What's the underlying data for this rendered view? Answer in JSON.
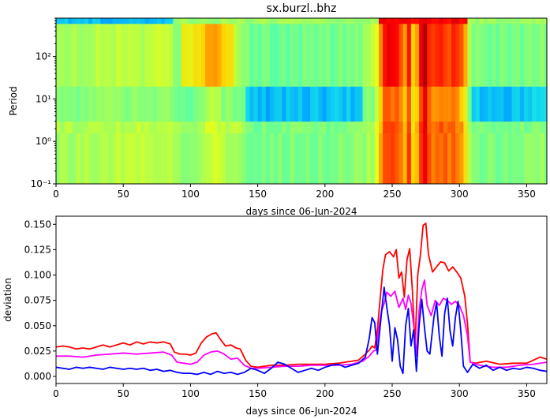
{
  "chart_data": [
    {
      "type": "heatmap",
      "title": "sx.burzl..bhz",
      "xlabel": "days since 06-Jun-2024",
      "ylabel": "Period",
      "xlim": [
        0,
        365
      ],
      "xticks": [
        "0",
        "50",
        "100",
        "150",
        "200",
        "250",
        "300",
        "350"
      ],
      "ylim": [
        0.1,
        800
      ],
      "yscale": "log",
      "yticks": [
        {
          "label": "10⁻¹",
          "value": 0.1
        },
        {
          "label": "10⁰",
          "value": 1
        },
        {
          "label": "10¹",
          "value": 10
        },
        {
          "label": "10²",
          "value": 100
        }
      ],
      "colormap": [
        "#00007f",
        "#0000ff",
        "#00a0ff",
        "#20ffe0",
        "#7fff7f",
        "#e0ff20",
        "#ffd000",
        "#ff6000",
        "#ff0000",
        "#b00000"
      ],
      "bands": [
        {
          "range": [
            0.1,
            1.6
          ],
          "period_weight": [
            0.06,
            0.12
          ]
        },
        {
          "range": [
            1.6,
            3
          ],
          "period_weight": [
            0.12,
            0.2
          ]
        },
        {
          "range": [
            3,
            20
          ],
          "period_weight": [
            0.2,
            0.15
          ]
        },
        {
          "range": [
            20,
            600
          ],
          "period_weight": [
            0.12,
            0.15
          ]
        },
        {
          "range": [
            600,
            800
          ],
          "period_weight": [
            0.05,
            0.05
          ]
        }
      ]
    },
    {
      "type": "line",
      "xlabel": "days since 06-Jun-2024",
      "ylabel": "deviation",
      "xlim": [
        0,
        365
      ],
      "ylim": [
        -0.007,
        0.158
      ],
      "xticks": [
        "0",
        "50",
        "100",
        "150",
        "200",
        "250",
        "300",
        "350"
      ],
      "yticks": [
        "0.000",
        "0.025",
        "0.050",
        "0.075",
        "0.100",
        "0.125",
        "0.150"
      ],
      "series": [
        {
          "color": "#ff0000",
          "points": [
            [
              0,
              0.029
            ],
            [
              5,
              0.03
            ],
            [
              10,
              0.029
            ],
            [
              15,
              0.027
            ],
            [
              20,
              0.028
            ],
            [
              25,
              0.027
            ],
            [
              30,
              0.029
            ],
            [
              35,
              0.031
            ],
            [
              40,
              0.029
            ],
            [
              45,
              0.031
            ],
            [
              50,
              0.033
            ],
            [
              55,
              0.031
            ],
            [
              60,
              0.034
            ],
            [
              65,
              0.032
            ],
            [
              70,
              0.034
            ],
            [
              75,
              0.033
            ],
            [
              80,
              0.034
            ],
            [
              85,
              0.032
            ],
            [
              88,
              0.024
            ],
            [
              92,
              0.022
            ],
            [
              96,
              0.022
            ],
            [
              100,
              0.021
            ],
            [
              104,
              0.023
            ],
            [
              108,
              0.033
            ],
            [
              112,
              0.039
            ],
            [
              116,
              0.042
            ],
            [
              119,
              0.043
            ],
            [
              122,
              0.037
            ],
            [
              126,
              0.03
            ],
            [
              130,
              0.031
            ],
            [
              134,
              0.028
            ],
            [
              137,
              0.027
            ],
            [
              141,
              0.016
            ],
            [
              145,
              0.01
            ],
            [
              150,
              0.009
            ],
            [
              160,
              0.011
            ],
            [
              170,
              0.011
            ],
            [
              180,
              0.012
            ],
            [
              190,
              0.012
            ],
            [
              200,
              0.012
            ],
            [
              210,
              0.013
            ],
            [
              215,
              0.014
            ],
            [
              220,
              0.015
            ],
            [
              225,
              0.016
            ],
            [
              230,
              0.022
            ],
            [
              233,
              0.026
            ],
            [
              235,
              0.03
            ],
            [
              237,
              0.028
            ],
            [
              239,
              0.046
            ],
            [
              241,
              0.076
            ],
            [
              243,
              0.105
            ],
            [
              245,
              0.12
            ],
            [
              248,
              0.123
            ],
            [
              251,
              0.118
            ],
            [
              253,
              0.125
            ],
            [
              255,
              0.097
            ],
            [
              257,
              0.103
            ],
            [
              259,
              0.078
            ],
            [
              261,
              0.115
            ],
            [
              263,
              0.126
            ],
            [
              265,
              0.085
            ],
            [
              267,
              0.03
            ],
            [
              269,
              0.1
            ],
            [
              271,
              0.12
            ],
            [
              273,
              0.149
            ],
            [
              275,
              0.151
            ],
            [
              277,
              0.12
            ],
            [
              280,
              0.103
            ],
            [
              283,
              0.108
            ],
            [
              286,
              0.113
            ],
            [
              289,
              0.112
            ],
            [
              292,
              0.104
            ],
            [
              295,
              0.108
            ],
            [
              298,
              0.103
            ],
            [
              301,
              0.097
            ],
            [
              304,
              0.079
            ],
            [
              306,
              0.052
            ],
            [
              308,
              0.014
            ],
            [
              312,
              0.013
            ],
            [
              320,
              0.015
            ],
            [
              330,
              0.012
            ],
            [
              340,
              0.013
            ],
            [
              350,
              0.013
            ],
            [
              355,
              0.016
            ],
            [
              360,
              0.019
            ],
            [
              365,
              0.017
            ]
          ]
        },
        {
          "color": "#ff00ff",
          "points": [
            [
              0,
              0.02
            ],
            [
              10,
              0.02
            ],
            [
              20,
              0.019
            ],
            [
              30,
              0.021
            ],
            [
              40,
              0.022
            ],
            [
              50,
              0.023
            ],
            [
              60,
              0.022
            ],
            [
              70,
              0.023
            ],
            [
              80,
              0.024
            ],
            [
              86,
              0.021
            ],
            [
              90,
              0.014
            ],
            [
              95,
              0.013
            ],
            [
              100,
              0.012
            ],
            [
              105,
              0.014
            ],
            [
              110,
              0.021
            ],
            [
              115,
              0.024
            ],
            [
              120,
              0.025
            ],
            [
              125,
              0.022
            ],
            [
              130,
              0.017
            ],
            [
              135,
              0.018
            ],
            [
              140,
              0.011
            ],
            [
              145,
              0.008
            ],
            [
              150,
              0.008
            ],
            [
              160,
              0.009
            ],
            [
              170,
              0.01
            ],
            [
              180,
              0.01
            ],
            [
              190,
              0.011
            ],
            [
              200,
              0.011
            ],
            [
              210,
              0.011
            ],
            [
              220,
              0.012
            ],
            [
              228,
              0.015
            ],
            [
              233,
              0.02
            ],
            [
              236,
              0.025
            ],
            [
              238,
              0.026
            ],
            [
              240,
              0.047
            ],
            [
              242,
              0.064
            ],
            [
              244,
              0.072
            ],
            [
              246,
              0.083
            ],
            [
              249,
              0.079
            ],
            [
              252,
              0.084
            ],
            [
              255,
              0.068
            ],
            [
              258,
              0.077
            ],
            [
              260,
              0.066
            ],
            [
              262,
              0.08
            ],
            [
              264,
              0.072
            ],
            [
              266,
              0.05
            ],
            [
              268,
              0.02
            ],
            [
              270,
              0.065
            ],
            [
              272,
              0.085
            ],
            [
              274,
              0.095
            ],
            [
              276,
              0.07
            ],
            [
              279,
              0.06
            ],
            [
              282,
              0.075
            ],
            [
              285,
              0.07
            ],
            [
              288,
              0.077
            ],
            [
              291,
              0.075
            ],
            [
              294,
              0.071
            ],
            [
              297,
              0.074
            ],
            [
              300,
              0.07
            ],
            [
              303,
              0.06
            ],
            [
              306,
              0.04
            ],
            [
              308,
              0.014
            ],
            [
              315,
              0.011
            ],
            [
              325,
              0.009
            ],
            [
              335,
              0.009
            ],
            [
              345,
              0.011
            ],
            [
              355,
              0.012
            ],
            [
              365,
              0.014
            ]
          ]
        },
        {
          "color": "#0000ff",
          "points": [
            [
              0,
              0.009
            ],
            [
              5,
              0.008
            ],
            [
              10,
              0.007
            ],
            [
              15,
              0.009
            ],
            [
              20,
              0.008
            ],
            [
              25,
              0.009
            ],
            [
              30,
              0.008
            ],
            [
              35,
              0.007
            ],
            [
              40,
              0.009
            ],
            [
              45,
              0.008
            ],
            [
              50,
              0.007
            ],
            [
              55,
              0.008
            ],
            [
              60,
              0.007
            ],
            [
              65,
              0.008
            ],
            [
              70,
              0.006
            ],
            [
              75,
              0.007
            ],
            [
              80,
              0.005
            ],
            [
              85,
              0.006
            ],
            [
              90,
              0.004
            ],
            [
              95,
              0.003
            ],
            [
              100,
              0.003
            ],
            [
              105,
              0.002
            ],
            [
              110,
              0.004
            ],
            [
              115,
              0.002
            ],
            [
              120,
              0.005
            ],
            [
              125,
              0.003
            ],
            [
              130,
              0.004
            ],
            [
              135,
              0.002
            ],
            [
              140,
              0.004
            ],
            [
              145,
              0.008
            ],
            [
              150,
              0.006
            ],
            [
              155,
              0.003
            ],
            [
              160,
              0.008
            ],
            [
              165,
              0.014
            ],
            [
              170,
              0.012
            ],
            [
              175,
              0.008
            ],
            [
              180,
              0.004
            ],
            [
              185,
              0.006
            ],
            [
              190,
              0.008
            ],
            [
              195,
              0.006
            ],
            [
              200,
              0.009
            ],
            [
              205,
              0.011
            ],
            [
              210,
              0.012
            ],
            [
              215,
              0.009
            ],
            [
              220,
              0.011
            ],
            [
              225,
              0.013
            ],
            [
              230,
              0.019
            ],
            [
              233,
              0.038
            ],
            [
              235,
              0.058
            ],
            [
              237,
              0.053
            ],
            [
              239,
              0.022
            ],
            [
              242,
              0.062
            ],
            [
              244,
              0.088
            ],
            [
              246,
              0.068
            ],
            [
              248,
              0.05
            ],
            [
              250,
              0.015
            ],
            [
              252,
              0.048
            ],
            [
              254,
              0.036
            ],
            [
              256,
              0.01
            ],
            [
              258,
              0.003
            ],
            [
              260,
              0.05
            ],
            [
              262,
              0.067
            ],
            [
              264,
              0.03
            ],
            [
              266,
              0.046
            ],
            [
              268,
              0.005
            ],
            [
              270,
              0.05
            ],
            [
              272,
              0.076
            ],
            [
              274,
              0.048
            ],
            [
              276,
              0.025
            ],
            [
              278,
              0.022
            ],
            [
              281,
              0.058
            ],
            [
              283,
              0.073
            ],
            [
              285,
              0.04
            ],
            [
              287,
              0.02
            ],
            [
              289,
              0.062
            ],
            [
              291,
              0.077
            ],
            [
              293,
              0.045
            ],
            [
              295,
              0.03
            ],
            [
              297,
              0.058
            ],
            [
              299,
              0.074
            ],
            [
              301,
              0.045
            ],
            [
              303,
              0.01
            ],
            [
              306,
              0.004
            ],
            [
              310,
              0.012
            ],
            [
              315,
              0.008
            ],
            [
              320,
              0.011
            ],
            [
              325,
              0.006
            ],
            [
              330,
              0.009
            ],
            [
              335,
              0.006
            ],
            [
              340,
              0.008
            ],
            [
              345,
              0.007
            ],
            [
              350,
              0.009
            ],
            [
              355,
              0.008
            ],
            [
              360,
              0.006
            ],
            [
              365,
              0.005
            ]
          ]
        }
      ]
    }
  ]
}
